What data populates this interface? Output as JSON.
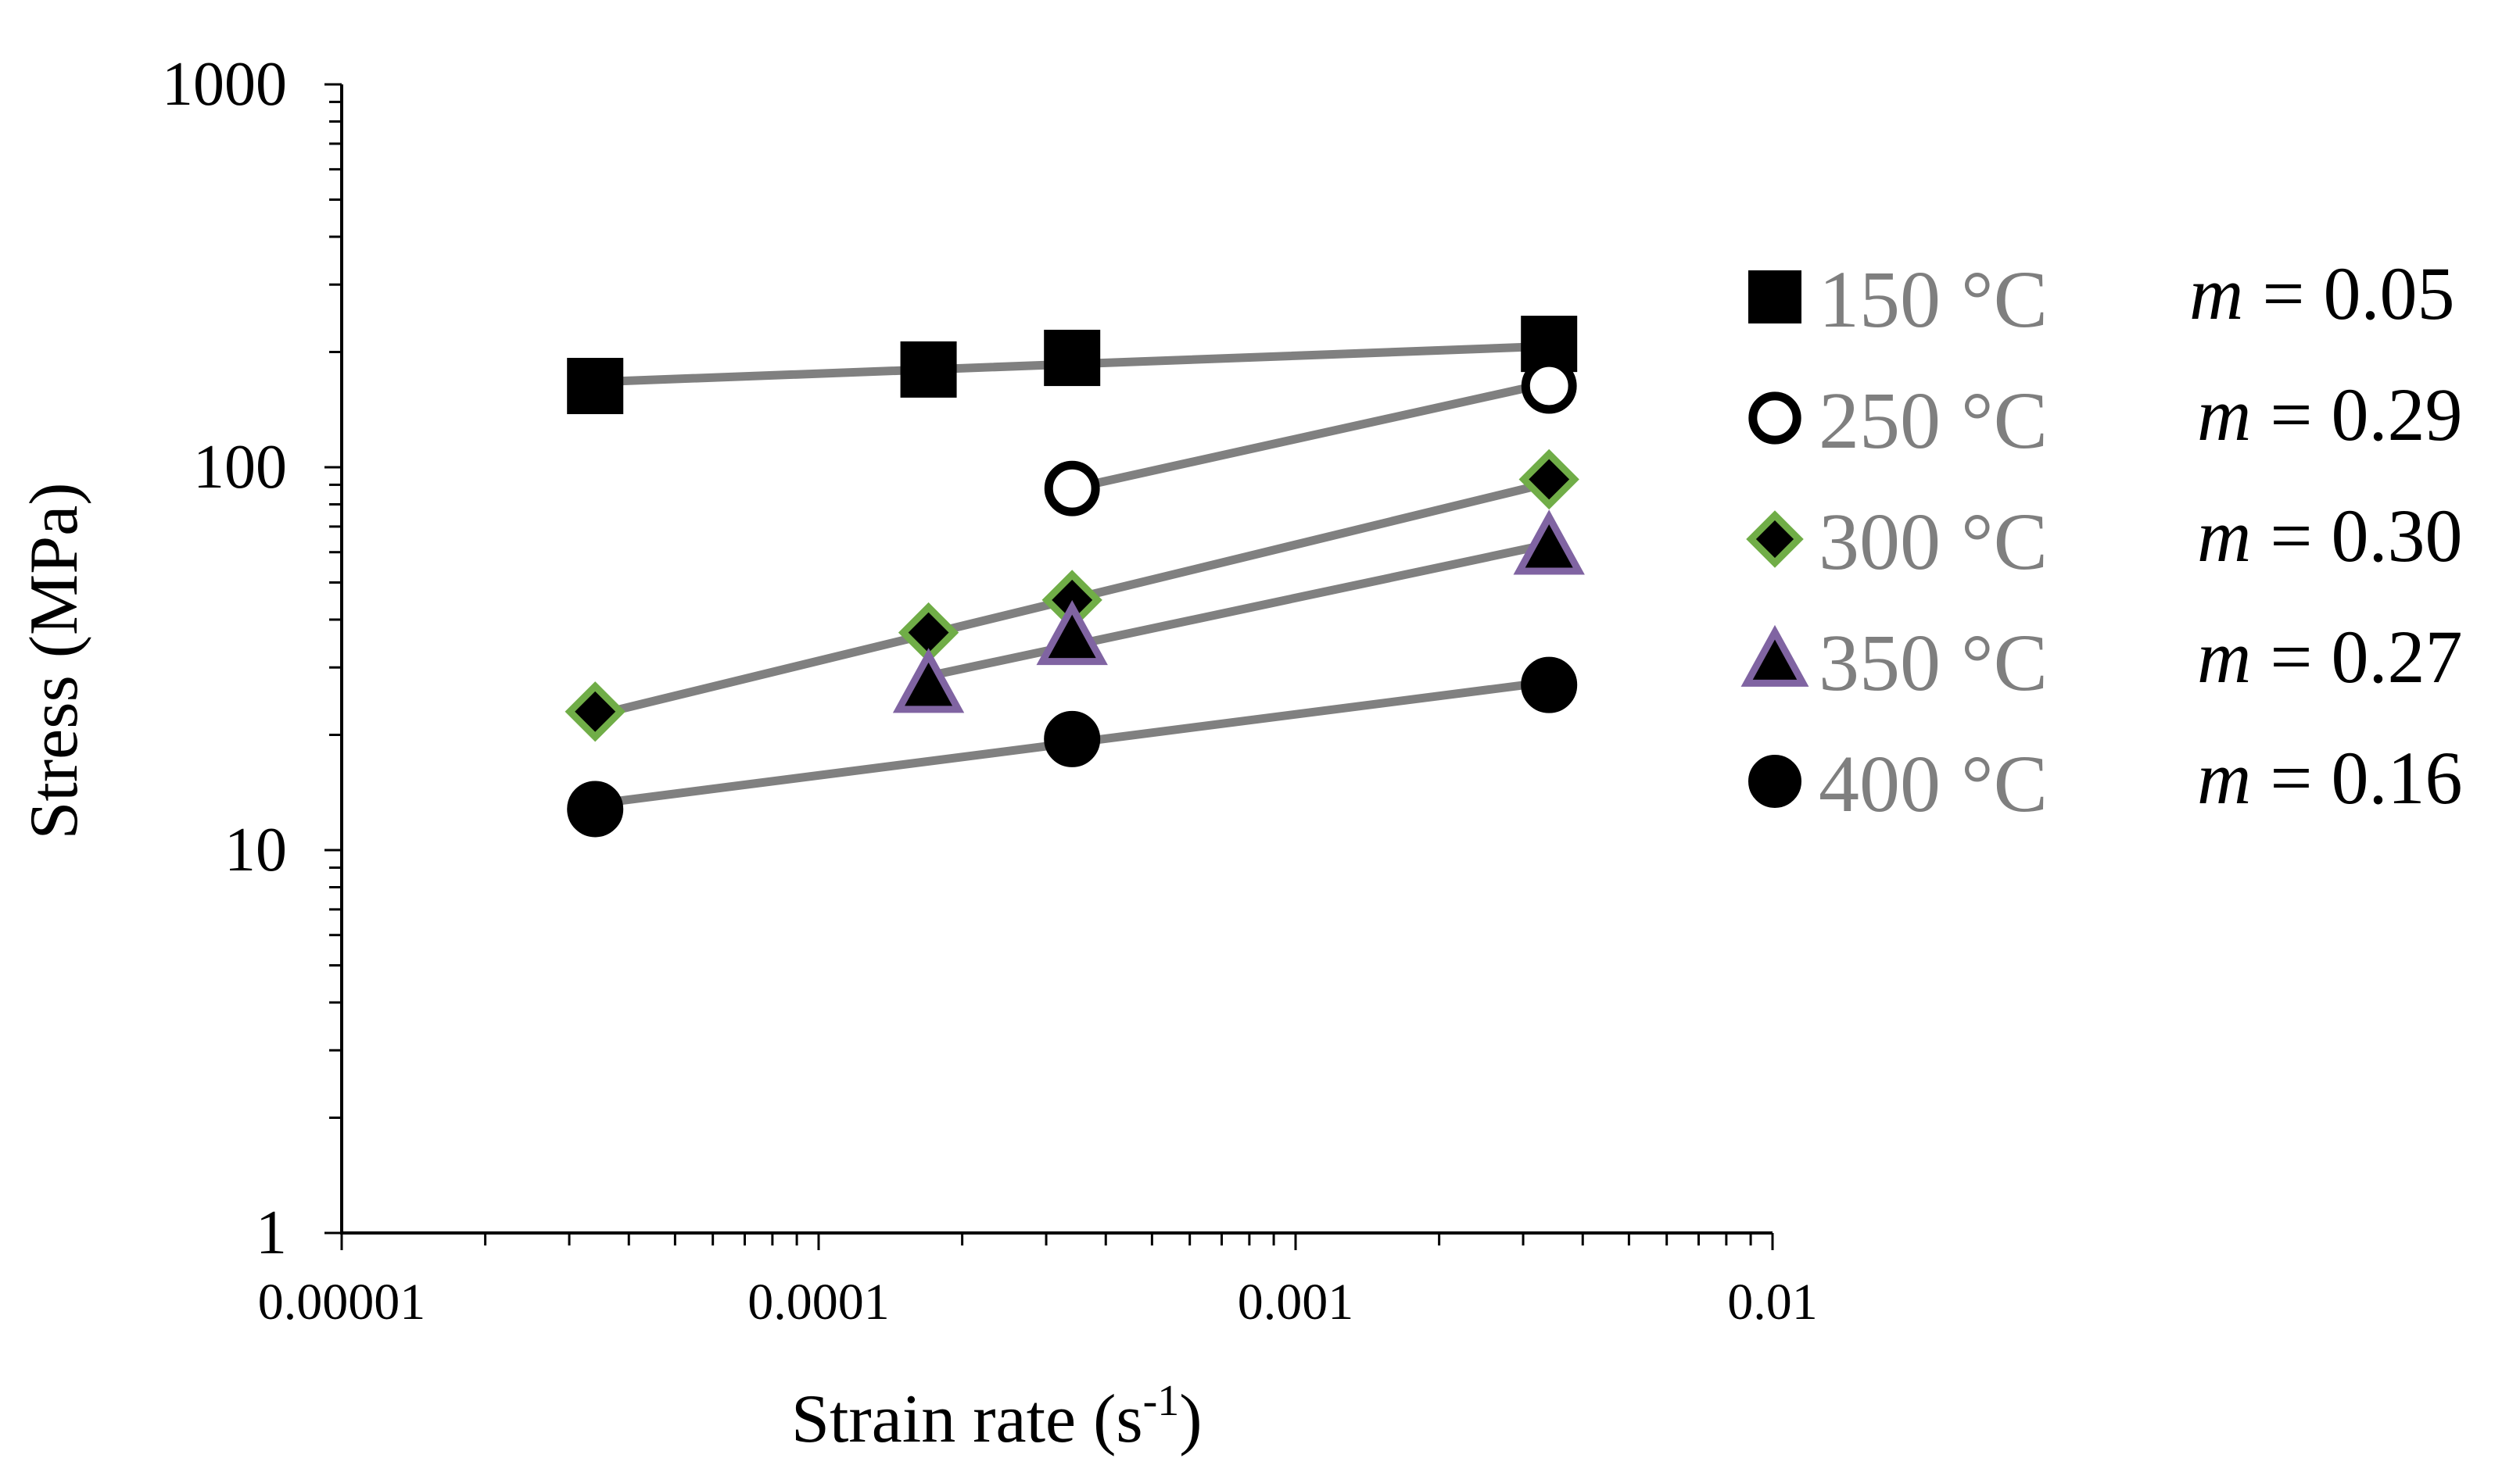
{
  "chart_data": {
    "type": "scatter",
    "title": "",
    "xlabel": "Strain rate (s",
    "xlabel_sup": "-1",
    "xlabel_end": ")",
    "ylabel": "Stress (MPa)",
    "xscale": "log",
    "yscale": "log",
    "xlim": [
      1e-05,
      0.01
    ],
    "ylim": [
      1,
      1000
    ],
    "x_ticks": [
      1e-05,
      0.0001,
      0.001,
      0.01
    ],
    "x_tick_labels": [
      "0.00001",
      "0.0001",
      "0.001",
      "0.01"
    ],
    "y_ticks": [
      1,
      10,
      100,
      1000
    ],
    "y_tick_labels": [
      "1",
      "10",
      "100",
      "1000"
    ],
    "legend_position": "right",
    "line_color": "#808080",
    "series": [
      {
        "name": "150 °C",
        "marker": "square",
        "fill": "#000000",
        "stroke": "#000000",
        "x": [
          3.4e-05,
          0.00017,
          0.00034,
          0.0034
        ],
        "y": [
          163,
          180,
          193,
          210
        ],
        "fit": {
          "x": [
            3.4e-05,
            0.0034
          ],
          "y": [
            167,
            207
          ]
        },
        "m_prefix": "m",
        "m_text": " = 0.05"
      },
      {
        "name": "250 °C",
        "marker": "circle-open",
        "fill": "#ffffff",
        "stroke": "#000000",
        "x": [
          0.00034,
          0.0034
        ],
        "y": [
          88,
          163
        ],
        "fit": {
          "x": [
            0.00034,
            0.0034
          ],
          "y": [
            88,
            166
          ]
        },
        "m_prefix": "m",
        "m_text": " = 0.29"
      },
      {
        "name": "300 °C",
        "marker": "diamond",
        "fill": "#000000",
        "stroke": "#70AD47",
        "x": [
          3.4e-05,
          0.00017,
          0.00034,
          0.0034
        ],
        "y": [
          23,
          37,
          45,
          93
        ],
        "fit": {
          "x": [
            3.4e-05,
            0.0034
          ],
          "y": [
            22.5,
            91
          ]
        },
        "m_prefix": "m",
        "m_text": " = 0.30"
      },
      {
        "name": "350 °C",
        "marker": "triangle",
        "fill": "#000000",
        "stroke": "#8064A2",
        "x": [
          0.00017,
          0.00034,
          0.0034
        ],
        "y": [
          27,
          36,
          62
        ],
        "fit": {
          "x": [
            0.00017,
            0.0034
          ],
          "y": [
            28.5,
            63
          ]
        },
        "m_prefix": "m",
        "m_text": " = 0.27"
      },
      {
        "name": "400 °C",
        "marker": "circle",
        "fill": "#000000",
        "stroke": "#000000",
        "x": [
          3.4e-05,
          0.00034,
          0.0034
        ],
        "y": [
          12.8,
          19.5,
          27
        ],
        "fit": {
          "x": [
            3.4e-05,
            0.0034
          ],
          "y": [
            13.2,
            27.5
          ]
        },
        "m_prefix": "m",
        "m_text": " = 0.16"
      }
    ]
  }
}
